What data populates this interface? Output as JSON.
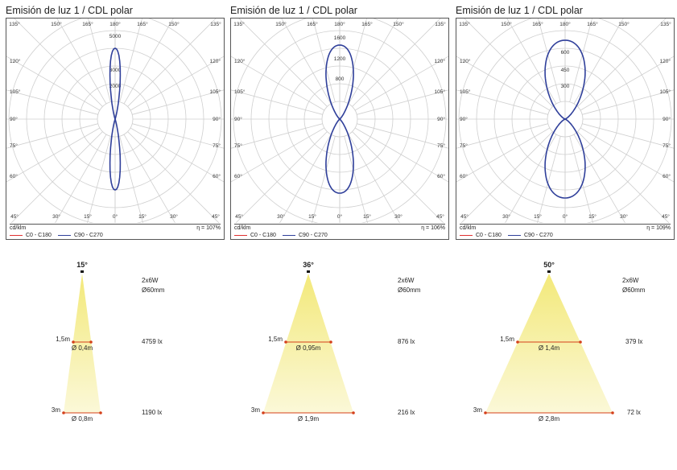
{
  "colors": {
    "c0_c180": "#e03030",
    "c90_c270": "#2f3f9a",
    "grid": "#cfcfcf",
    "beam": "#f7f0a8",
    "marker": "#d4401a"
  },
  "common": {
    "top_angles": [
      "135°",
      "150°",
      "165°",
      "180°",
      "165°",
      "150°",
      "135°"
    ],
    "side_angles": [
      "120°",
      "105°",
      "90°",
      "75°",
      "60°"
    ],
    "bottom_angles": [
      "45°",
      "30°",
      "15°",
      "0°",
      "15°",
      "30°",
      "45°"
    ],
    "unit": "cd/klm",
    "legend": [
      "C0 - C180",
      "C90 - C270"
    ],
    "power": "2x6W",
    "diameter": "Ø60mm",
    "distance_1": "1,5m",
    "distance_2": "3m"
  },
  "panels": [
    {
      "title": "Emisión de luz 1 / CDL polar",
      "efficiency": "η = 107%",
      "radial_labels": [
        "5000",
        "3000",
        "2000"
      ],
      "chart_data": {
        "type": "polar",
        "series": [
          {
            "name": "C0 - C180",
            "values": []
          },
          {
            "name": "C90 - C270",
            "peak_cd_klm": 5000,
            "beam_half_angle_deg": 7
          }
        ]
      },
      "beam": {
        "angle": "15°",
        "d1": "Ø 0,4m",
        "lux1": "4759 lx",
        "d2": "Ø 0,8m",
        "lux2": "1190 lx"
      }
    },
    {
      "title": "Emisión de luz 1 / CDL polar",
      "efficiency": "η = 106%",
      "radial_labels": [
        "1600",
        "1200",
        "800"
      ],
      "chart_data": {
        "type": "polar",
        "series": [
          {
            "name": "C0 - C180",
            "values": []
          },
          {
            "name": "C90 - C270",
            "peak_cd_klm": 1650,
            "beam_half_angle_deg": 18
          }
        ]
      },
      "beam": {
        "angle": "36°",
        "d1": "Ø 0,95m",
        "lux1": "876 lx",
        "d2": "Ø 1,9m",
        "lux2": "216 lx"
      }
    },
    {
      "title": "Emisión de luz 1 / CDL polar",
      "efficiency": "η = 109%",
      "radial_labels": [
        "600",
        "450",
        "300"
      ],
      "chart_data": {
        "type": "polar",
        "series": [
          {
            "name": "C0 - C180",
            "values": []
          },
          {
            "name": "C90 - C270",
            "peak_cd_klm": 710,
            "beam_half_angle_deg": 25
          }
        ]
      },
      "beam": {
        "angle": "50°",
        "d1": "Ø 1,4m",
        "lux1": "379 lx",
        "d2": "Ø 2,8m",
        "lux2": "72 lx"
      }
    }
  ]
}
